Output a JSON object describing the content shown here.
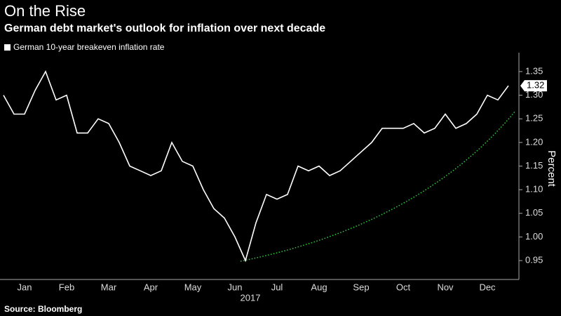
{
  "chart_data": {
    "type": "line",
    "title": "On the Rise",
    "subtitle": "German debt market's outlook for inflation over next decade",
    "ylabel": "Percent",
    "xlabel": "2017",
    "source": "Source: Bloomberg",
    "categories": [
      null,
      null,
      "Jan",
      null,
      null,
      null,
      "Feb",
      null,
      null,
      null,
      "Mar",
      null,
      null,
      null,
      "Apr",
      null,
      null,
      null,
      "May",
      null,
      null,
      null,
      "Jun",
      null,
      null,
      null,
      "Jul",
      null,
      null,
      null,
      "Aug",
      null,
      null,
      null,
      "Sep",
      null,
      null,
      null,
      "Oct",
      null,
      null,
      null,
      "Nov",
      null,
      null,
      null,
      "Dec",
      null,
      null
    ],
    "series": [
      {
        "name": "German 10-year breakeven inflation rate",
        "color": "#ffffff",
        "values": [
          1.3,
          1.26,
          1.26,
          1.31,
          1.35,
          1.29,
          1.3,
          1.22,
          1.22,
          1.25,
          1.24,
          1.2,
          1.15,
          1.14,
          1.13,
          1.14,
          1.2,
          1.16,
          1.15,
          1.1,
          1.06,
          1.04,
          1.0,
          0.95,
          1.03,
          1.09,
          1.08,
          1.09,
          1.15,
          1.14,
          1.15,
          1.13,
          1.14,
          1.16,
          1.18,
          1.2,
          1.23,
          1.23,
          1.23,
          1.24,
          1.22,
          1.23,
          1.26,
          1.23,
          1.24,
          1.26,
          1.3,
          1.29,
          1.32
        ]
      }
    ],
    "ylim": [
      0.91,
      1.39
    ],
    "yticks": [
      0.95,
      {
        "value": 1,
        "label": "1.00"
      },
      1.05,
      {
        "value": 1.1,
        "label": "1.10"
      },
      1.15,
      {
        "value": 1.2,
        "label": "1.20"
      },
      1.25,
      {
        "value": 1.3,
        "label": "1.30"
      },
      1.35
    ],
    "grid": false,
    "legend": "top-left"
  }
}
